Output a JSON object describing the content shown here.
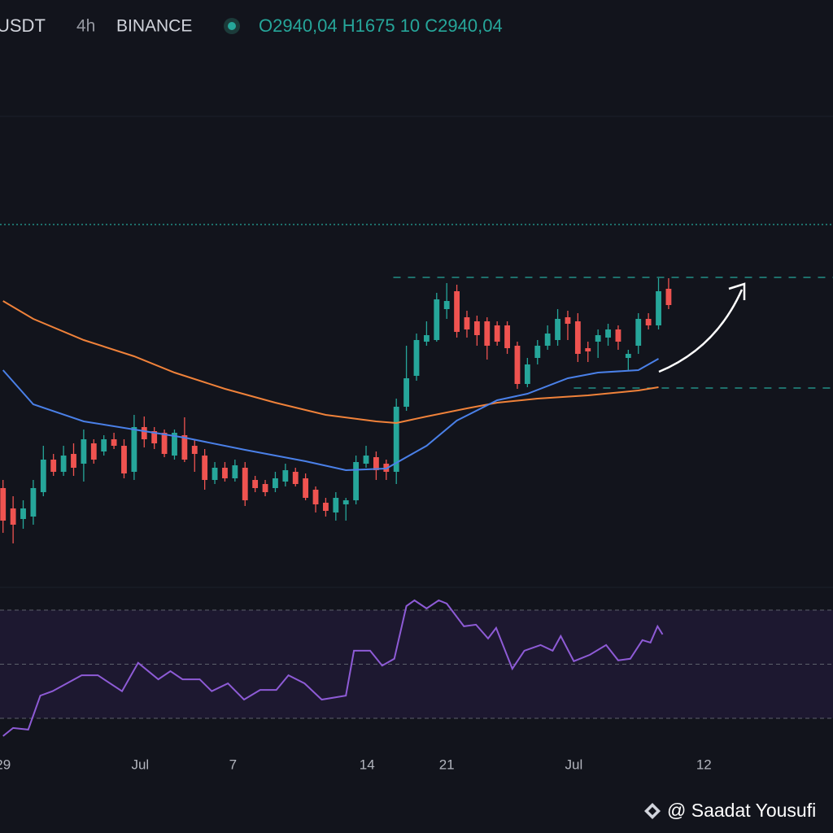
{
  "header": {
    "symbol": "USDT",
    "interval": "4h",
    "exchange": "BINANCE",
    "ohlc": "O2940,04 H1675 10 C2940,04"
  },
  "watermark": "@ Saadat Yousufi",
  "chart_data": [
    {
      "type": "candlestick",
      "xlim": [
        -0.3,
        82.3
      ],
      "ylim": [
        0,
        660
      ],
      "up_color": "#26a69a",
      "down_color": "#ef5350",
      "open": [
        120,
        95,
        82,
        85,
        115,
        155,
        140,
        162,
        150,
        175,
        165,
        180,
        172,
        140,
        195,
        190,
        188,
        160,
        185,
        172,
        160,
        130,
        145,
        132,
        145,
        130,
        125,
        120,
        128,
        140,
        132,
        118,
        102,
        90,
        100,
        105,
        150,
        158,
        150,
        140,
        220,
        258,
        300,
        302,
        340,
        362,
        330,
        325,
        325,
        320,
        320,
        295,
        248,
        280,
        295,
        302,
        330,
        325,
        292,
        300,
        305,
        315,
        280,
        295,
        328,
        320,
        365
      ],
      "high": [
        130,
        110,
        105,
        130,
        172,
        162,
        172,
        175,
        192,
        180,
        185,
        188,
        180,
        210,
        208,
        195,
        192,
        192,
        207,
        180,
        168,
        152,
        152,
        155,
        152,
        135,
        130,
        140,
        150,
        145,
        138,
        122,
        108,
        115,
        108,
        160,
        172,
        165,
        155,
        230,
        295,
        310,
        325,
        360,
        372,
        370,
        338,
        332,
        330,
        325,
        325,
        300,
        280,
        302,
        320,
        340,
        338,
        335,
        300,
        315,
        322,
        320,
        290,
        335,
        335,
        378,
        378
      ],
      "low": [
        65,
        52,
        70,
        75,
        110,
        135,
        135,
        135,
        128,
        150,
        160,
        168,
        132,
        130,
        170,
        168,
        158,
        155,
        152,
        140,
        118,
        125,
        128,
        128,
        98,
        115,
        110,
        115,
        122,
        122,
        105,
        90,
        85,
        80,
        80,
        100,
        145,
        130,
        130,
        125,
        215,
        252,
        295,
        300,
        328,
        305,
        305,
        295,
        278,
        295,
        285,
        242,
        244,
        272,
        290,
        295,
        302,
        275,
        275,
        280,
        295,
        290,
        265,
        285,
        315,
        315,
        340
      ],
      "close": [
        80,
        75,
        95,
        120,
        155,
        140,
        160,
        145,
        180,
        155,
        180,
        172,
        138,
        195,
        180,
        175,
        162,
        188,
        155,
        162,
        130,
        145,
        132,
        148,
        105,
        120,
        115,
        132,
        142,
        125,
        108,
        100,
        92,
        108,
        105,
        152,
        160,
        142,
        140,
        220,
        255,
        302,
        308,
        352,
        350,
        312,
        315,
        308,
        295,
        300,
        292,
        248,
        272,
        295,
        310,
        328,
        322,
        285,
        288,
        308,
        315,
        300,
        285,
        328,
        320,
        362,
        345
      ],
      "lines": [
        {
          "color": "#f0823a",
          "x": [
            0,
            3,
            8,
            13,
            17,
            22,
            27,
            32,
            37,
            39,
            42,
            46,
            49,
            53,
            58,
            63,
            65
          ],
          "values": [
            350,
            328,
            302,
            282,
            262,
            242,
            225,
            210,
            202,
            200,
            208,
            218,
            225,
            230,
            234,
            240,
            244
          ]
        },
        {
          "color": "#4a80e8",
          "x": [
            0,
            3,
            8,
            13,
            18,
            24,
            30,
            34,
            38,
            42,
            45,
            49,
            52,
            56,
            59,
            63,
            65
          ],
          "values": [
            265,
            223,
            202,
            192,
            182,
            167,
            153,
            142,
            144,
            172,
            203,
            228,
            236,
            255,
            262,
            265,
            279
          ]
        }
      ],
      "levels": [
        {
          "value": 444,
          "from": -0.3,
          "style": "dotted",
          "color": "#26a69a"
        },
        {
          "value": 379,
          "from": 38.7,
          "style": "dashed",
          "color": "#26a69a"
        },
        {
          "value": 243,
          "from": 56.6,
          "style": "dashed",
          "color": "#26a69a"
        }
      ]
    },
    {
      "type": "line",
      "xlim": [
        -0.3,
        82.3
      ],
      "ylim": [
        17,
        78
      ],
      "color": "#8e5bd6",
      "band_fill": "#1d1830",
      "bands": [
        30,
        50,
        70
      ],
      "x": [
        0,
        1,
        2.5,
        3.7,
        4.9,
        7.8,
        9.4,
        11.8,
        13.4,
        15.4,
        16.6,
        17.8,
        19.5,
        20.7,
        22.3,
        23.9,
        25.5,
        27.1,
        28.3,
        29.9,
        31.6,
        34,
        34.8,
        36.4,
        37.6,
        38.8,
        40,
        40.8,
        42,
        43.2,
        44,
        45.7,
        46.9,
        48.1,
        48.9,
        50.5,
        51.7,
        53.3,
        54.5,
        55.3,
        56.6,
        58.2,
        59.8,
        61,
        62.2,
        63.4,
        64.2,
        64.9,
        65.4
      ],
      "values": [
        23.4,
        26.4,
        25.8,
        38.4,
        40,
        45.9,
        45.9,
        40,
        50.5,
        44.4,
        47.4,
        44.4,
        44.4,
        40,
        42.9,
        36.9,
        40.5,
        40.5,
        45.9,
        42.9,
        36.9,
        38.4,
        55,
        55,
        49.5,
        52,
        71.5,
        73.6,
        70.6,
        73.6,
        72.4,
        64,
        64.6,
        59.5,
        63.4,
        48.3,
        55,
        57.1,
        55,
        60.4,
        51.1,
        53.5,
        57.1,
        51.4,
        52,
        58.9,
        58,
        64,
        61
      ],
      "xticks": [
        {
          "value": 0,
          "label": "29"
        },
        {
          "value": 13.6,
          "label": "Jul"
        },
        {
          "value": 22.8,
          "label": "7"
        },
        {
          "value": 36.1,
          "label": "14"
        },
        {
          "value": 44,
          "label": "21"
        },
        {
          "value": 56.6,
          "label": "Jul"
        },
        {
          "value": 69.5,
          "label": "12"
        }
      ]
    }
  ]
}
